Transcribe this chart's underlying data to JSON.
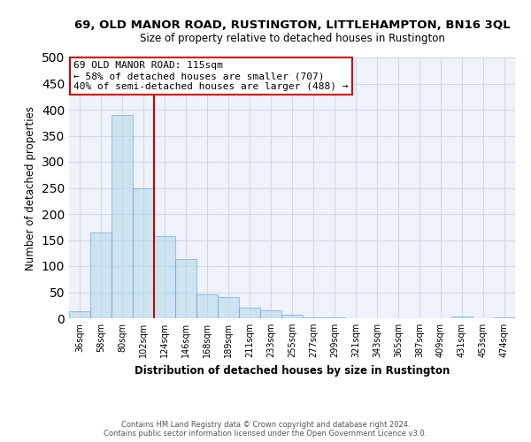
{
  "title": "69, OLD MANOR ROAD, RUSTINGTON, LITTLEHAMPTON, BN16 3QL",
  "subtitle": "Size of property relative to detached houses in Rustington",
  "xlabel": "Distribution of detached houses by size in Rustington",
  "ylabel": "Number of detached properties",
  "categories": [
    "36sqm",
    "58sqm",
    "80sqm",
    "102sqm",
    "124sqm",
    "146sqm",
    "168sqm",
    "189sqm",
    "211sqm",
    "233sqm",
    "255sqm",
    "277sqm",
    "299sqm",
    "321sqm",
    "343sqm",
    "365sqm",
    "387sqm",
    "409sqm",
    "431sqm",
    "453sqm",
    "474sqm"
  ],
  "values": [
    14,
    165,
    390,
    249,
    158,
    113,
    45,
    40,
    20,
    15,
    7,
    2,
    1,
    0,
    0,
    0,
    0,
    0,
    3,
    0,
    1
  ],
  "bar_color": "#add8e6",
  "bar_edge_color": "#5b9bd5",
  "bar_fill_alpha": 0.5,
  "vline_x": 3.5,
  "vline_color": "#cc0000",
  "annotation_title": "69 OLD MANOR ROAD: 115sqm",
  "annotation_line1": "← 58% of detached houses are smaller (707)",
  "annotation_line2": "40% of semi-detached houses are larger (488) →",
  "annotation_box_color": "#ffffff",
  "annotation_box_edge_color": "#cc0000",
  "ylim": [
    0,
    500
  ],
  "yticks": [
    0,
    50,
    100,
    150,
    200,
    250,
    300,
    350,
    400,
    450,
    500
  ],
  "grid_color": "#d0d8e8",
  "background_color": "#eef2fb",
  "footer": "Contains HM Land Registry data © Crown copyright and database right 2024.\nContains public sector information licensed under the Open Government Licence v3.0."
}
